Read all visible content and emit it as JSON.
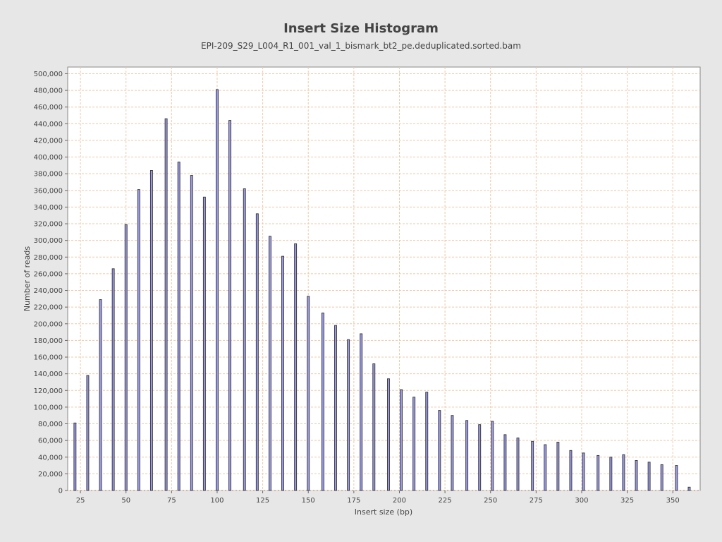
{
  "chart_data": {
    "type": "bar",
    "title": "Insert Size Histogram",
    "subtitle": "EPI-209_S29_L004_R1_001_val_1_bismark_bt2_pe.deduplicated.sorted.bam",
    "xlabel": "Insert size (bp)",
    "ylabel": "Number of reads",
    "xlim": [
      18,
      365
    ],
    "ylim": [
      0,
      508000
    ],
    "xticks": [
      25,
      50,
      75,
      100,
      125,
      150,
      175,
      200,
      225,
      250,
      275,
      300,
      325,
      350
    ],
    "yticks": [
      0,
      20000,
      40000,
      60000,
      80000,
      100000,
      120000,
      140000,
      160000,
      180000,
      200000,
      220000,
      240000,
      260000,
      280000,
      300000,
      320000,
      340000,
      360000,
      380000,
      400000,
      420000,
      440000,
      460000,
      480000,
      500000
    ],
    "xtick_labels": [
      "25",
      "50",
      "75",
      "100",
      "125",
      "150",
      "175",
      "200",
      "225",
      "250",
      "275",
      "300",
      "325",
      "350"
    ],
    "ytick_labels": [
      "0",
      "20,000",
      "40,000",
      "60,000",
      "80,000",
      "100,000",
      "120,000",
      "140,000",
      "160,000",
      "180,000",
      "200,000",
      "220,000",
      "240,000",
      "260,000",
      "280,000",
      "300,000",
      "320,000",
      "340,000",
      "360,000",
      "380,000",
      "400,000",
      "420,000",
      "440,000",
      "460,000",
      "480,000",
      "500,000"
    ],
    "grid": true,
    "bar_color": "#9999e8",
    "bar_edge_color": "#333333",
    "grid_color": "#f0c8a8",
    "x": [
      22,
      29,
      36,
      43,
      50,
      57,
      64,
      72,
      79,
      86,
      93,
      100,
      107,
      115,
      122,
      129,
      136,
      143,
      150,
      158,
      165,
      172,
      179,
      186,
      194,
      201,
      208,
      215,
      222,
      229,
      237,
      244,
      251,
      258,
      265,
      273,
      280,
      287,
      294,
      301,
      309,
      316,
      323,
      330,
      337,
      344,
      352,
      359
    ],
    "values": [
      81000,
      138000,
      229000,
      266000,
      319000,
      361000,
      384000,
      446000,
      394000,
      378000,
      352000,
      481000,
      444000,
      362000,
      332000,
      305000,
      281000,
      296000,
      233000,
      213000,
      198000,
      181000,
      188000,
      152000,
      134000,
      121000,
      112000,
      118000,
      96000,
      90000,
      84000,
      79000,
      83000,
      67000,
      63000,
      59000,
      55000,
      58000,
      48000,
      45000,
      42000,
      40000,
      43000,
      36000,
      34000,
      31000,
      30000,
      4000
    ]
  }
}
